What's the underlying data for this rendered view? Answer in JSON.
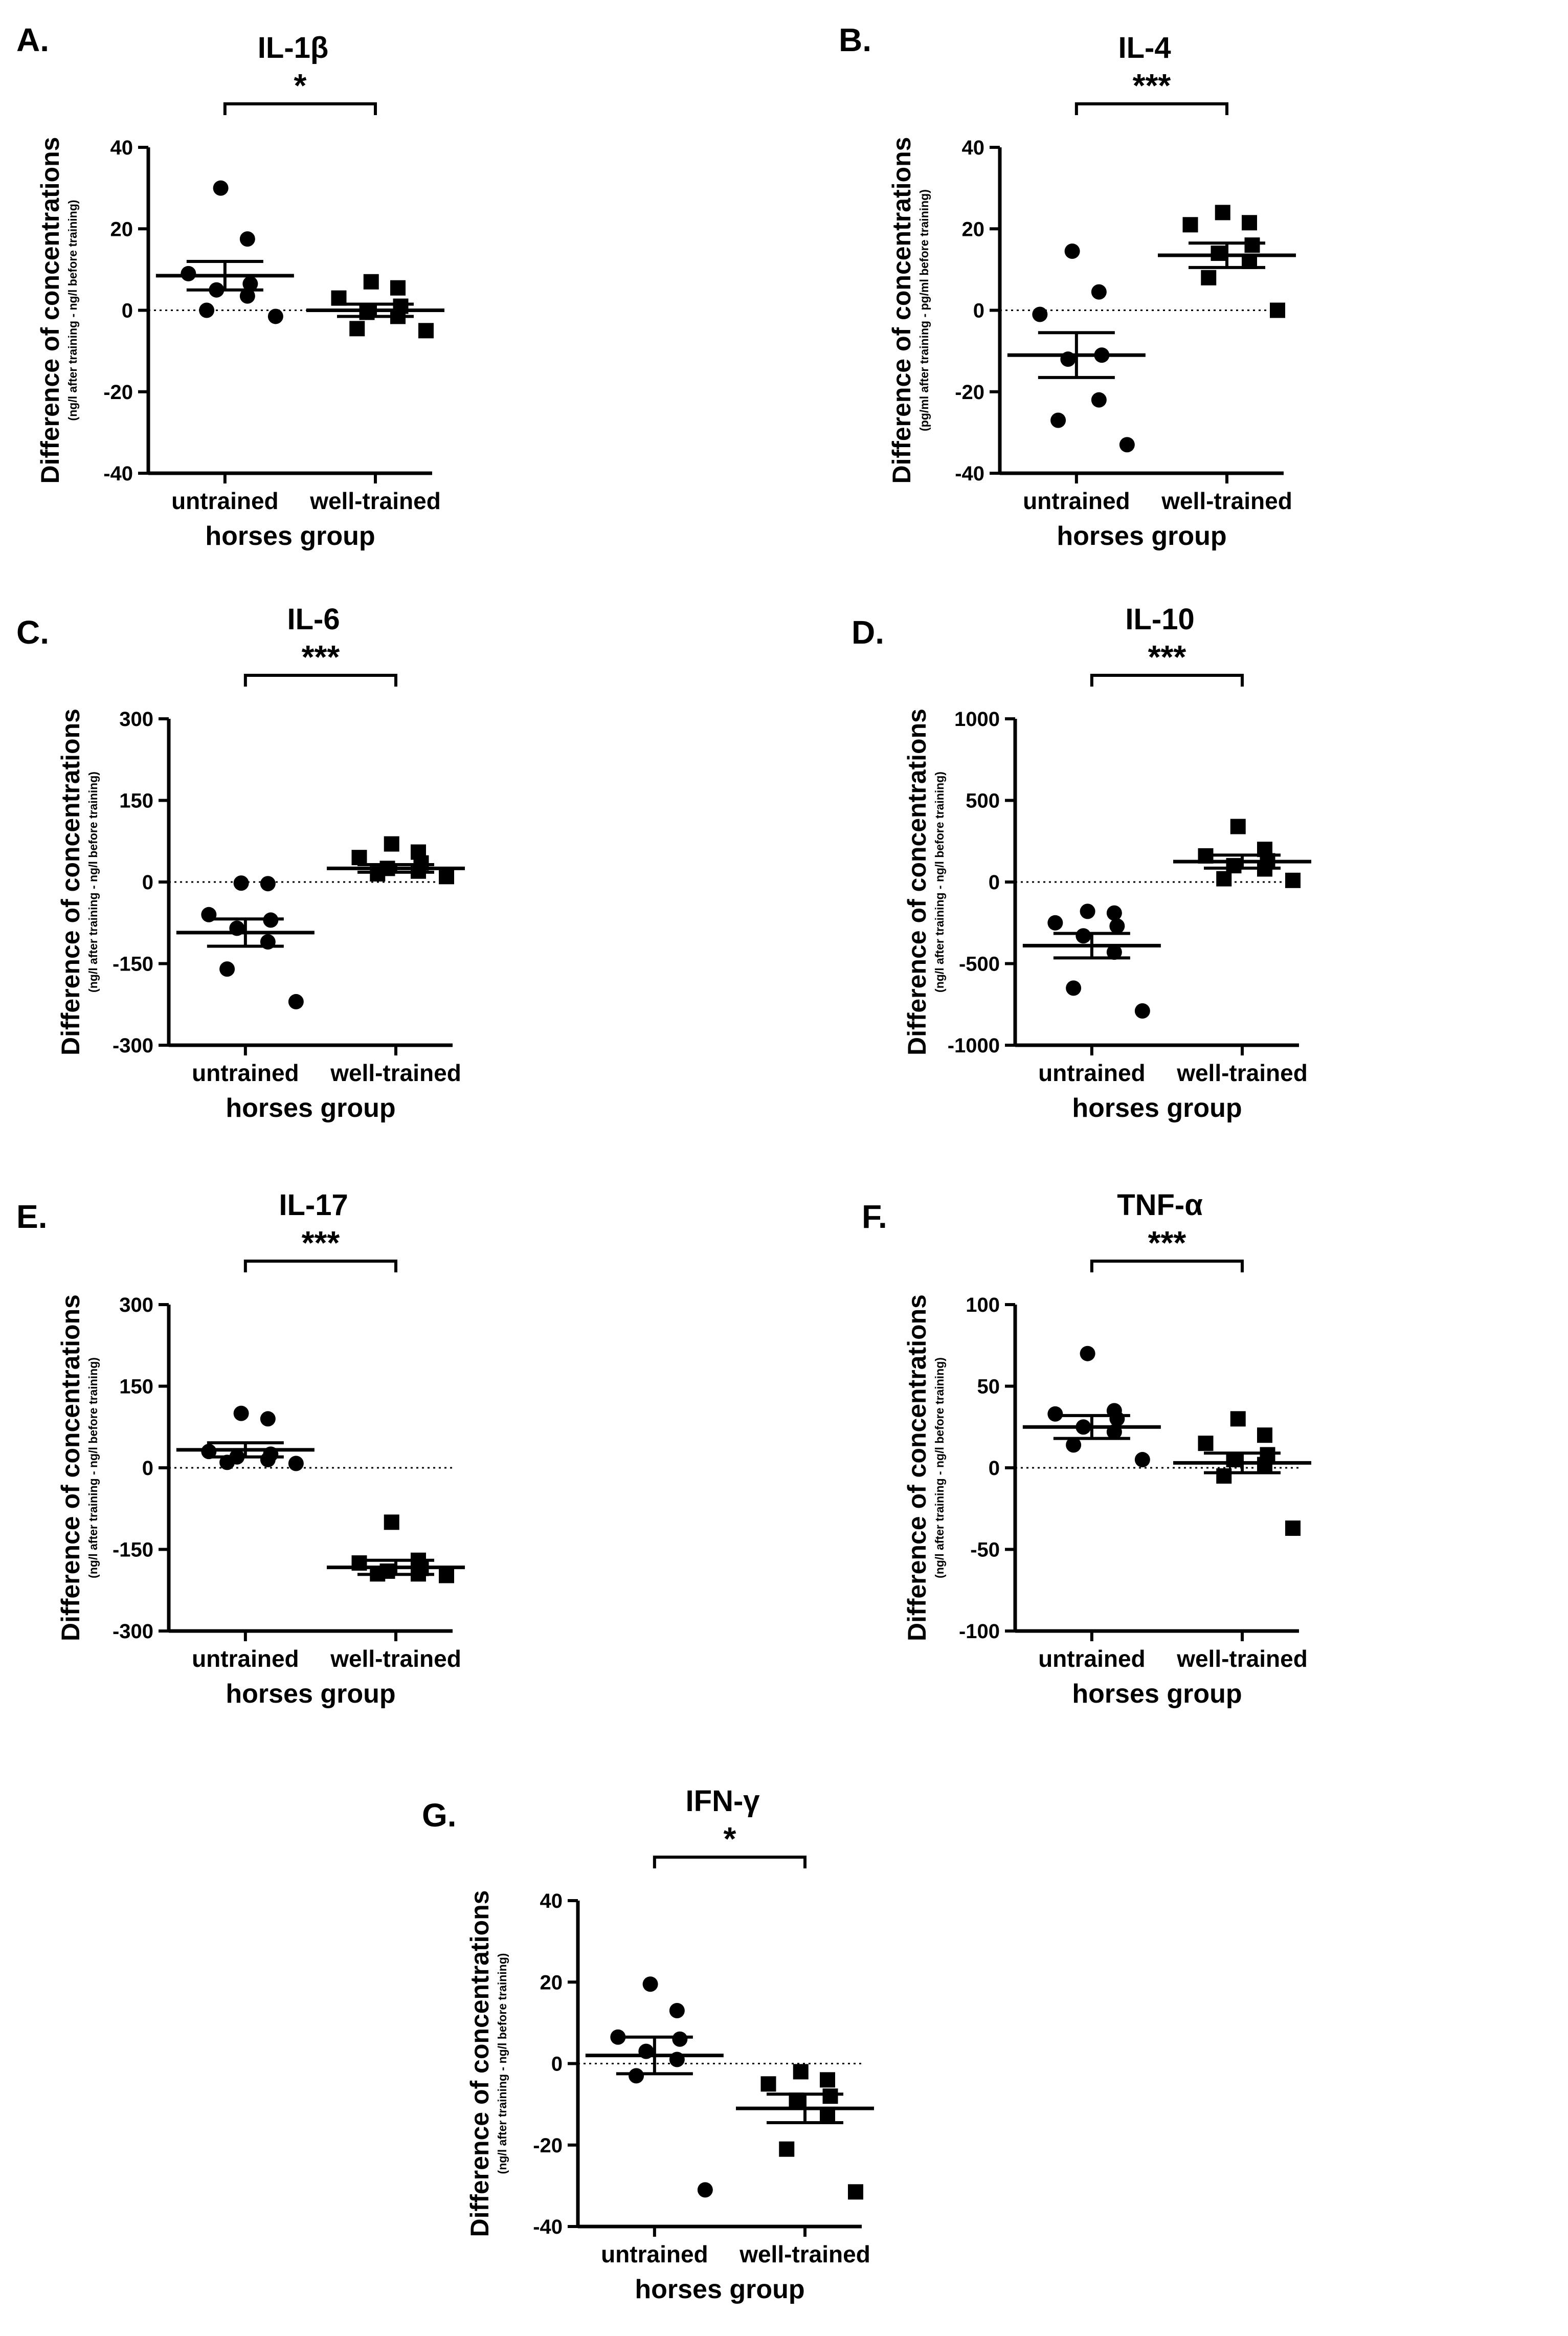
{
  "figure": {
    "background": "#ffffff",
    "mark_color": "#000000",
    "charts": [
      {
        "panel": "A.",
        "title": "IL-1β",
        "significance": "*",
        "ylabel": "Difference of concentrations",
        "ylabel_sub": "(ng/l after training - ng/l before training)",
        "xlabel": "horses group",
        "categories": [
          "untrained",
          "well-trained"
        ],
        "ylim": [
          -40,
          40
        ],
        "yticks": [
          "-40",
          "-20",
          "0",
          "20",
          "40"
        ],
        "tick_values": [
          -40,
          -20,
          0,
          20,
          40
        ],
        "means": [
          8.5,
          0
        ],
        "sems": [
          3.5,
          1.5
        ],
        "untrained": [
          30,
          17.5,
          9,
          6.5,
          5,
          3.5,
          0,
          -1.5
        ],
        "well_trained": [
          7,
          5.5,
          3,
          1,
          -0.5,
          -1.5,
          -4.5,
          -5
        ]
      },
      {
        "panel": "B.",
        "title": "IL-4",
        "significance": "***",
        "ylabel": "Difference of concentrations",
        "ylabel_sub": "(pg/ml after training - pg/ml before training)",
        "xlabel": "horses group",
        "categories": [
          "untrained",
          "well-trained"
        ],
        "ylim": [
          -40,
          40
        ],
        "yticks": [
          "-40",
          "-20",
          "0",
          "20",
          "40"
        ],
        "tick_values": [
          -40,
          -20,
          0,
          20,
          40
        ],
        "means": [
          -11,
          13.5
        ],
        "sems": [
          5.5,
          3
        ],
        "untrained": [
          14.5,
          4.5,
          -1,
          -11,
          -12,
          -22,
          -27,
          -33
        ],
        "well_trained": [
          24,
          21.5,
          21,
          16,
          14,
          12,
          8,
          0
        ]
      },
      {
        "panel": "C.",
        "title": "IL-6",
        "significance": "***",
        "ylabel": "Difference of concentrations",
        "ylabel_sub": "(ng/l after training - ng/l before training)",
        "xlabel": "horses group",
        "categories": [
          "untrained",
          "well-trained"
        ],
        "ylim": [
          -300,
          300
        ],
        "yticks": [
          "-300",
          "-150",
          "0",
          "150",
          "300"
        ],
        "tick_values": [
          -300,
          -150,
          0,
          150,
          300
        ],
        "means": [
          -93,
          25
        ],
        "sems": [
          25,
          7
        ],
        "untrained": [
          -2,
          -3,
          -60,
          -70,
          -85,
          -110,
          -160,
          -220
        ],
        "well_trained": [
          70,
          55,
          45,
          35,
          25,
          20,
          15,
          10
        ]
      },
      {
        "panel": "D.",
        "title": "IL-10",
        "significance": "***",
        "ylabel": "Difference of concentrations",
        "ylabel_sub": "(ng/l after training - ng/l before training)",
        "xlabel": "horses group",
        "categories": [
          "untrained",
          "well-trained"
        ],
        "ylim": [
          -1000,
          1000
        ],
        "yticks": [
          "-1000",
          "-500",
          "0",
          "500",
          "1000"
        ],
        "tick_values": [
          -1000,
          -500,
          0,
          500,
          1000
        ],
        "means": [
          -390,
          125
        ],
        "sems": [
          75,
          40
        ],
        "untrained": [
          -180,
          -190,
          -250,
          -270,
          -330,
          -430,
          -650,
          -790
        ],
        "well_trained": [
          340,
          200,
          160,
          130,
          100,
          80,
          20,
          10
        ]
      },
      {
        "panel": "E.",
        "title": "IL-17",
        "significance": "***",
        "ylabel": "Difference of concentrations",
        "ylabel_sub": "(ng/l after training - ng/l before training)",
        "xlabel": "horses group",
        "categories": [
          "untrained",
          "well-trained"
        ],
        "ylim": [
          -300,
          300
        ],
        "yticks": [
          "-300",
          "-150",
          "0",
          "150",
          "300"
        ],
        "tick_values": [
          -300,
          -150,
          0,
          150,
          300
        ],
        "means": [
          33,
          -183
        ],
        "sems": [
          13,
          13
        ],
        "untrained": [
          100,
          90,
          30,
          25,
          20,
          15,
          10,
          8
        ],
        "well_trained": [
          -100,
          -170,
          -175,
          -185,
          -190,
          -195,
          -195,
          -198
        ]
      },
      {
        "panel": "F.",
        "title": "TNF-α",
        "significance": "***",
        "ylabel": "Difference of concentrations",
        "ylabel_sub": "(ng/l after training - ng/l before training)",
        "xlabel": "horses group",
        "categories": [
          "untrained",
          "well-trained"
        ],
        "ylim": [
          -100,
          100
        ],
        "yticks": [
          "-100",
          "-50",
          "0",
          "50",
          "100"
        ],
        "tick_values": [
          -100,
          -50,
          0,
          50,
          100
        ],
        "means": [
          25,
          3
        ],
        "sems": [
          7,
          6
        ],
        "untrained": [
          70,
          35,
          33,
          30,
          25,
          22,
          14,
          5
        ],
        "well_trained": [
          30,
          20,
          15,
          8,
          5,
          2,
          -5,
          -37
        ]
      },
      {
        "panel": "G.",
        "title": "IFN-γ",
        "significance": "*",
        "ylabel": "Difference of concentrations",
        "ylabel_sub": "(ng/l after training - ng/l before training)",
        "xlabel": "horses group",
        "categories": [
          "untrained",
          "well-trained"
        ],
        "ylim": [
          -40,
          40
        ],
        "yticks": [
          "-40",
          "-20",
          "0",
          "20",
          "40"
        ],
        "tick_values": [
          -40,
          -20,
          0,
          20,
          40
        ],
        "means": [
          2,
          -11
        ],
        "sems": [
          4.5,
          3.5
        ],
        "untrained": [
          19.5,
          13,
          6.5,
          6,
          3,
          1,
          -3,
          -31
        ],
        "well_trained": [
          -2,
          -4,
          -5,
          -8,
          -9,
          -13,
          -21,
          -31.5
        ]
      }
    ]
  },
  "chart_data": [
    {
      "type": "scatter",
      "title": "IL-1β",
      "categories": [
        "untrained",
        "well-trained"
      ],
      "xlabel": "horses group",
      "ylabel": "Difference of concentrations (ng/l after training - ng/l before training)",
      "ylim": [
        -40,
        40
      ],
      "series": [
        {
          "name": "untrained",
          "values": [
            30,
            17.5,
            9,
            6.5,
            5,
            3.5,
            0,
            -1.5
          ]
        },
        {
          "name": "well-trained",
          "values": [
            7,
            5.5,
            3,
            1,
            -0.5,
            -1.5,
            -4.5,
            -5
          ]
        }
      ],
      "means": [
        8.5,
        0
      ],
      "significance": "*"
    },
    {
      "type": "scatter",
      "title": "IL-4",
      "categories": [
        "untrained",
        "well-trained"
      ],
      "xlabel": "horses group",
      "ylabel": "Difference of concentrations (pg/ml after training - pg/ml before training)",
      "ylim": [
        -40,
        40
      ],
      "series": [
        {
          "name": "untrained",
          "values": [
            14.5,
            4.5,
            -1,
            -11,
            -12,
            -22,
            -27,
            -33
          ]
        },
        {
          "name": "well-trained",
          "values": [
            24,
            21.5,
            21,
            16,
            14,
            12,
            8,
            0
          ]
        }
      ],
      "means": [
        -11,
        13.5
      ],
      "significance": "***"
    },
    {
      "type": "scatter",
      "title": "IL-6",
      "categories": [
        "untrained",
        "well-trained"
      ],
      "xlabel": "horses group",
      "ylabel": "Difference of concentrations (ng/l after training - ng/l before training)",
      "ylim": [
        -300,
        300
      ],
      "series": [
        {
          "name": "untrained",
          "values": [
            -2,
            -3,
            -60,
            -70,
            -85,
            -110,
            -160,
            -220
          ]
        },
        {
          "name": "well-trained",
          "values": [
            70,
            55,
            45,
            35,
            25,
            20,
            15,
            10
          ]
        }
      ],
      "means": [
        -93,
        25
      ],
      "significance": "***"
    },
    {
      "type": "scatter",
      "title": "IL-10",
      "categories": [
        "untrained",
        "well-trained"
      ],
      "xlabel": "horses group",
      "ylabel": "Difference of concentrations (ng/l after training - ng/l before training)",
      "ylim": [
        -1000,
        1000
      ],
      "series": [
        {
          "name": "untrained",
          "values": [
            -180,
            -190,
            -250,
            -270,
            -330,
            -430,
            -650,
            -790
          ]
        },
        {
          "name": "well-trained",
          "values": [
            340,
            200,
            160,
            130,
            100,
            80,
            20,
            10
          ]
        }
      ],
      "means": [
        -390,
        125
      ],
      "significance": "***"
    },
    {
      "type": "scatter",
      "title": "IL-17",
      "categories": [
        "untrained",
        "well-trained"
      ],
      "xlabel": "horses group",
      "ylabel": "Difference of concentrations (ng/l after training - ng/l before training)",
      "ylim": [
        -300,
        300
      ],
      "series": [
        {
          "name": "untrained",
          "values": [
            100,
            90,
            30,
            25,
            20,
            15,
            10,
            8
          ]
        },
        {
          "name": "well-trained",
          "values": [
            -100,
            -170,
            -175,
            -185,
            -190,
            -195,
            -195,
            -198
          ]
        }
      ],
      "means": [
        33,
        -183
      ],
      "significance": "***"
    },
    {
      "type": "scatter",
      "title": "TNF-α",
      "categories": [
        "untrained",
        "well-trained"
      ],
      "xlabel": "horses group",
      "ylabel": "Difference of concentrations (ng/l after training - ng/l before training)",
      "ylim": [
        -100,
        100
      ],
      "series": [
        {
          "name": "untrained",
          "values": [
            70,
            35,
            33,
            30,
            25,
            22,
            14,
            5
          ]
        },
        {
          "name": "well-trained",
          "values": [
            30,
            20,
            15,
            8,
            5,
            2,
            -5,
            -37
          ]
        }
      ],
      "means": [
        25,
        3
      ],
      "significance": "***"
    },
    {
      "type": "scatter",
      "title": "IFN-γ",
      "categories": [
        "untrained",
        "well-trained"
      ],
      "xlabel": "horses group",
      "ylabel": "Difference of concentrations (ng/l after training - ng/l before training)",
      "ylim": [
        -40,
        40
      ],
      "series": [
        {
          "name": "untrained",
          "values": [
            19.5,
            13,
            6.5,
            6,
            3,
            1,
            -3,
            -31
          ]
        },
        {
          "name": "well-trained",
          "values": [
            -2,
            -4,
            -5,
            -8,
            -9,
            -13,
            -21,
            -31.5
          ]
        }
      ],
      "means": [
        2,
        -11
      ],
      "significance": "*"
    }
  ]
}
